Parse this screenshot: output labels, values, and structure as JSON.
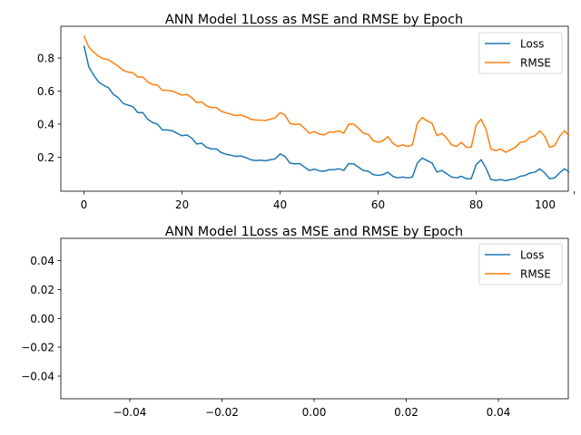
{
  "colors": {
    "loss": "#1f77b4",
    "rmse": "#ff7f0e",
    "axes": "#000000",
    "legend_border": "#cccccc"
  },
  "chart_data": [
    {
      "type": "line",
      "title": "ANN Model 1Loss as MSE and RMSE by Epoch",
      "xlabel": "",
      "ylabel": "",
      "xlim": [
        -5,
        104
      ],
      "ylim": [
        0.0,
        0.98
      ],
      "xticks": [
        "0",
        "20",
        "40",
        "60",
        "80",
        "100"
      ],
      "yticks": [
        "0.2",
        "0.4",
        "0.6",
        "0.8"
      ],
      "grid": false,
      "legend_position": "top-right",
      "series": [
        {
          "name": "Loss",
          "x": [
            0,
            1,
            2,
            3,
            4,
            5,
            6,
            7,
            8,
            9,
            10,
            11,
            12,
            13,
            14,
            15,
            16,
            17,
            18,
            19,
            20,
            21,
            22,
            23,
            24,
            25,
            26,
            27,
            28,
            29,
            30,
            31,
            32,
            33,
            34,
            35,
            36,
            37,
            38,
            39,
            40,
            41,
            42,
            43,
            44,
            45,
            46,
            47,
            48,
            49,
            50,
            51,
            52,
            53,
            54,
            55,
            56,
            57,
            58,
            59,
            60,
            61,
            62,
            63,
            64,
            65,
            66,
            67,
            68,
            69,
            70,
            71,
            72,
            73,
            74,
            75,
            76,
            77,
            78,
            79,
            80,
            81,
            82,
            83,
            84,
            85,
            86,
            87,
            88,
            89,
            90,
            91,
            92,
            93,
            94,
            95,
            96,
            97,
            98,
            99
          ],
          "values": [
            0.875,
            0.745,
            0.695,
            0.655,
            0.635,
            0.62,
            0.58,
            0.56,
            0.525,
            0.515,
            0.505,
            0.47,
            0.47,
            0.43,
            0.41,
            0.4,
            0.365,
            0.365,
            0.36,
            0.345,
            0.33,
            0.335,
            0.315,
            0.28,
            0.285,
            0.26,
            0.25,
            0.25,
            0.228,
            0.218,
            0.212,
            0.205,
            0.208,
            0.198,
            0.185,
            0.18,
            0.182,
            0.178,
            0.185,
            0.19,
            0.22,
            0.205,
            0.165,
            0.16,
            0.162,
            0.14,
            0.12,
            0.128,
            0.118,
            0.115,
            0.125,
            0.125,
            0.13,
            0.12,
            0.162,
            0.16,
            0.14,
            0.12,
            0.115,
            0.095,
            0.09,
            0.095,
            0.11,
            0.085,
            0.075,
            0.08,
            0.075,
            0.08,
            0.165,
            0.195,
            0.18,
            0.165,
            0.11,
            0.12,
            0.1,
            0.08,
            0.075,
            0.085,
            0.07,
            0.07,
            0.155,
            0.185,
            0.135,
            0.065,
            0.06,
            0.065,
            0.058,
            0.065,
            0.07,
            0.085,
            0.09,
            0.105,
            0.11,
            0.13,
            0.105,
            0.07,
            0.075,
            0.105,
            0.13,
            0.11
          ]
        },
        {
          "name": "RMSE",
          "x": [
            0,
            1,
            2,
            3,
            4,
            5,
            6,
            7,
            8,
            9,
            10,
            11,
            12,
            13,
            14,
            15,
            16,
            17,
            18,
            19,
            20,
            21,
            22,
            23,
            24,
            25,
            26,
            27,
            28,
            29,
            30,
            31,
            32,
            33,
            34,
            35,
            36,
            37,
            38,
            39,
            40,
            41,
            42,
            43,
            44,
            45,
            46,
            47,
            48,
            49,
            50,
            51,
            52,
            53,
            54,
            55,
            56,
            57,
            58,
            59,
            60,
            61,
            62,
            63,
            64,
            65,
            66,
            67,
            68,
            69,
            70,
            71,
            72,
            73,
            74,
            75,
            76,
            77,
            78,
            79,
            80,
            81,
            82,
            83,
            84,
            85,
            86,
            87,
            88,
            89,
            90,
            91,
            92,
            93,
            94,
            95,
            96,
            97,
            98,
            99
          ],
          "values": [
            0.935,
            0.865,
            0.835,
            0.81,
            0.795,
            0.79,
            0.77,
            0.75,
            0.725,
            0.715,
            0.71,
            0.685,
            0.685,
            0.655,
            0.64,
            0.635,
            0.605,
            0.605,
            0.6,
            0.588,
            0.575,
            0.58,
            0.56,
            0.53,
            0.535,
            0.51,
            0.5,
            0.5,
            0.478,
            0.468,
            0.46,
            0.452,
            0.455,
            0.445,
            0.43,
            0.425,
            0.425,
            0.422,
            0.43,
            0.438,
            0.47,
            0.455,
            0.405,
            0.398,
            0.4,
            0.375,
            0.345,
            0.355,
            0.34,
            0.335,
            0.352,
            0.352,
            0.36,
            0.345,
            0.4,
            0.4,
            0.375,
            0.345,
            0.338,
            0.3,
            0.29,
            0.3,
            0.325,
            0.285,
            0.265,
            0.275,
            0.265,
            0.275,
            0.405,
            0.44,
            0.42,
            0.405,
            0.33,
            0.345,
            0.315,
            0.275,
            0.265,
            0.29,
            0.26,
            0.26,
            0.395,
            0.43,
            0.37,
            0.25,
            0.24,
            0.25,
            0.23,
            0.245,
            0.26,
            0.29,
            0.295,
            0.32,
            0.33,
            0.36,
            0.325,
            0.26,
            0.27,
            0.325,
            0.36,
            0.33
          ]
        }
      ]
    },
    {
      "type": "line",
      "title": "ANN Model 1Loss as MSE and RMSE by Epoch",
      "xlabel": "",
      "ylabel": "",
      "xlim": [
        -0.055,
        0.055
      ],
      "ylim": [
        -0.055,
        0.055
      ],
      "xticks": [
        "−0.04",
        "−0.02",
        "0.00",
        "0.02",
        "0.04"
      ],
      "yticks": [
        "−0.04",
        "−0.02",
        "0.00",
        "0.02",
        "0.04"
      ],
      "grid": false,
      "legend_position": "top-right",
      "series": [
        {
          "name": "Loss",
          "x": [],
          "values": []
        },
        {
          "name": "RMSE",
          "x": [],
          "values": []
        }
      ]
    }
  ]
}
